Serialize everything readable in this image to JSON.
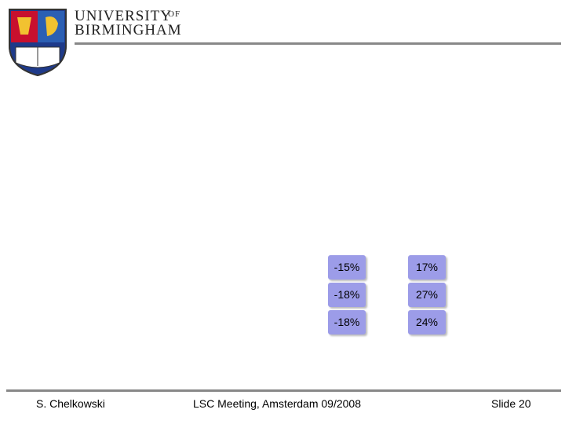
{
  "header": {
    "name_line1": "UNIVERSITY",
    "name_of": "OF",
    "name_line2": "BIRMINGHAM"
  },
  "table": {
    "rows": [
      [
        "-15%",
        "17%"
      ],
      [
        "-18%",
        "27%"
      ],
      [
        "-18%",
        "24%"
      ]
    ]
  },
  "footer": {
    "author": "S. Chelkowski",
    "event": "LSC Meeting, Amsterdam 09/2008",
    "slide": "Slide 20"
  }
}
